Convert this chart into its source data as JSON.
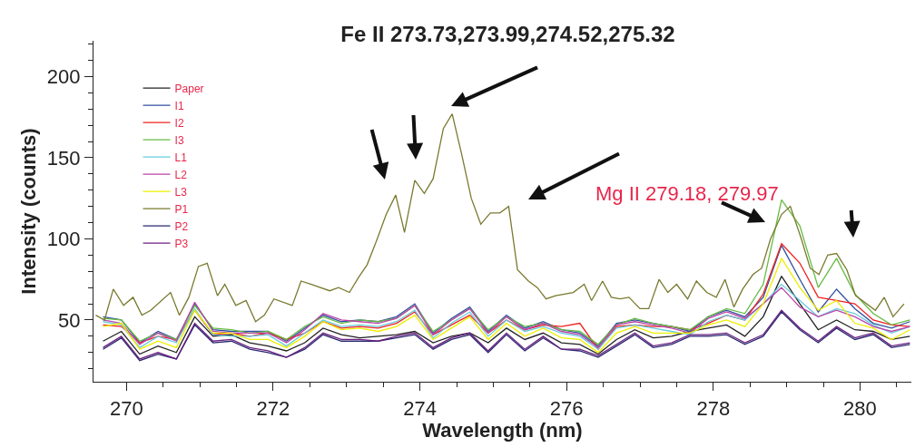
{
  "chart_data": {
    "type": "line",
    "title": "Fe II 273.73,273.99,274.52,275.32",
    "xlabel": "Wavelength (nm)",
    "ylabel": "Intensity (counts)",
    "annotations": [
      "Mg II 279.18, 279.97"
    ],
    "xlim": [
      269.55,
      280.7
    ],
    "xticks": [
      270,
      272,
      274,
      276,
      278,
      280,
      {
        "value": 270.5,
        "label": null
      },
      {
        "value": 271,
        "label": null
      },
      {
        "value": 271.5,
        "label": null
      },
      {
        "value": 272.5,
        "label": null
      },
      {
        "value": 273,
        "label": null
      },
      {
        "value": 273.5,
        "label": null
      },
      {
        "value": 274.5,
        "label": null
      },
      {
        "value": 275,
        "label": null
      },
      {
        "value": 275.5,
        "label": null
      },
      {
        "value": 276.5,
        "label": null
      },
      {
        "value": 277,
        "label": null
      },
      {
        "value": 277.5,
        "label": null
      },
      {
        "value": 278.5,
        "label": null
      },
      {
        "value": 279,
        "label": null
      },
      {
        "value": 279.5,
        "label": null
      },
      {
        "value": 280.5,
        "label": null
      }
    ],
    "ylim": [
      12,
      222
    ],
    "yticks": [
      50,
      100,
      150,
      200,
      {
        "value": 20,
        "label": null
      },
      {
        "value": 30,
        "label": null
      },
      {
        "value": 40,
        "label": null
      },
      {
        "value": 60,
        "label": null
      },
      {
        "value": 70,
        "label": null
      },
      {
        "value": 80,
        "label": null
      },
      {
        "value": 90,
        "label": null
      },
      {
        "value": 110,
        "label": null
      },
      {
        "value": 120,
        "label": null
      },
      {
        "value": 130,
        "label": null
      },
      {
        "value": 140,
        "label": null
      },
      {
        "value": 160,
        "label": null
      },
      {
        "value": 170,
        "label": null
      },
      {
        "value": 180,
        "label": null
      },
      {
        "value": 190,
        "label": null
      },
      {
        "value": 210,
        "label": null
      },
      {
        "value": 220,
        "label": null
      }
    ],
    "legend": "top left",
    "x": [
      269.68,
      269.93,
      270.18,
      270.43,
      270.68,
      270.93,
      271.18,
      271.43,
      271.68,
      271.93,
      272.18,
      272.43,
      272.68,
      272.93,
      273.18,
      273.43,
      273.68,
      273.93,
      274.18,
      274.43,
      274.68,
      274.93,
      275.18,
      275.43,
      275.68,
      275.93,
      276.18,
      276.43,
      276.68,
      276.93,
      277.18,
      277.43,
      277.68,
      277.93,
      278.18,
      278.43,
      278.68,
      278.93,
      279.18,
      279.43,
      279.68,
      279.93,
      280.18,
      280.43,
      280.68
    ],
    "series": [
      {
        "name": "Paper",
        "color": "#222222",
        "values": [
          37,
          43,
          29,
          34,
          30,
          52,
          40,
          41,
          36,
          34,
          31,
          36,
          45,
          41,
          39,
          40,
          41,
          43,
          36,
          40,
          42,
          36,
          45,
          38,
          42,
          36,
          35,
          29,
          38,
          44,
          39,
          40,
          43,
          45,
          47,
          40,
          52,
          77,
          60,
          44,
          50,
          44,
          43,
          38,
          40
        ]
      },
      {
        "name": "I1",
        "color": "#3050a0",
        "values": [
          52,
          50,
          36,
          43,
          38,
          60,
          44,
          43,
          43,
          43,
          37,
          45,
          53,
          49,
          50,
          49,
          52,
          60,
          42,
          51,
          58,
          43,
          53,
          45,
          49,
          44,
          42,
          34,
          48,
          50,
          48,
          46,
          43,
          52,
          56,
          52,
          64,
          96,
          75,
          55,
          69,
          57,
          48,
          45,
          49
        ]
      },
      {
        "name": "I2",
        "color": "#ee2020",
        "values": [
          47,
          46,
          36,
          40,
          38,
          56,
          41,
          42,
          40,
          42,
          38,
          42,
          49,
          45,
          46,
          45,
          48,
          55,
          41,
          47,
          53,
          42,
          50,
          44,
          47,
          46,
          48,
          32,
          46,
          47,
          46,
          46,
          44,
          48,
          53,
          50,
          66,
          97,
          85,
          64,
          62,
          60,
          50,
          47,
          46
        ]
      },
      {
        "name": "I3",
        "color": "#66bb44",
        "values": [
          51,
          50,
          37,
          42,
          38,
          59,
          45,
          44,
          42,
          43,
          38,
          46,
          52,
          48,
          50,
          49,
          51,
          59,
          43,
          50,
          57,
          44,
          52,
          46,
          48,
          44,
          43,
          35,
          47,
          51,
          48,
          46,
          44,
          52,
          57,
          54,
          72,
          124,
          108,
          70,
          88,
          66,
          54,
          47,
          50
        ]
      },
      {
        "name": "L1",
        "color": "#66ccdd",
        "values": [
          49,
          47,
          33,
          40,
          36,
          57,
          41,
          40,
          40,
          41,
          34,
          42,
          50,
          46,
          47,
          46,
          49,
          56,
          39,
          48,
          55,
          40,
          50,
          43,
          46,
          42,
          40,
          32,
          45,
          47,
          45,
          43,
          41,
          49,
          53,
          50,
          60,
          72,
          62,
          52,
          57,
          54,
          47,
          42,
          46
        ]
      },
      {
        "name": "L2",
        "color": "#bb44aa",
        "values": [
          50,
          48,
          35,
          42,
          37,
          61,
          43,
          42,
          42,
          42,
          36,
          44,
          54,
          50,
          49,
          48,
          51,
          59,
          41,
          50,
          57,
          42,
          52,
          44,
          48,
          43,
          41,
          33,
          47,
          49,
          47,
          45,
          42,
          51,
          55,
          51,
          60,
          70,
          58,
          52,
          56,
          52,
          46,
          43,
          46
        ]
      },
      {
        "name": "L3",
        "color": "#eeee00",
        "values": [
          46,
          48,
          32,
          37,
          33,
          56,
          42,
          42,
          38,
          38,
          33,
          40,
          49,
          44,
          45,
          43,
          46,
          53,
          38,
          45,
          52,
          38,
          48,
          40,
          45,
          39,
          38,
          30,
          42,
          46,
          42,
          42,
          42,
          47,
          50,
          46,
          60,
          88,
          70,
          56,
          62,
          48,
          45,
          38,
          44
        ]
      },
      {
        "name": "P1",
        "color": "#7a7a30",
        "x": [
          269.58,
          269.7,
          269.82,
          269.96,
          270.09,
          270.21,
          270.33,
          270.6,
          270.72,
          270.85,
          270.98,
          271.1,
          271.24,
          271.34,
          271.49,
          271.63,
          271.76,
          271.88,
          272.01,
          272.26,
          272.38,
          272.52,
          272.77,
          272.89,
          273.04,
          273.16,
          273.28,
          273.41,
          273.54,
          273.67,
          273.79,
          273.93,
          274.06,
          274.18,
          274.32,
          274.44,
          274.57,
          274.7,
          274.83,
          274.96,
          275.09,
          275.21,
          275.33,
          275.48,
          275.6,
          275.72,
          275.85,
          276.09,
          276.24,
          276.34,
          276.49,
          276.61,
          276.73,
          276.85,
          277.0,
          277.12,
          277.26,
          277.38,
          277.5,
          277.65,
          277.77,
          277.91,
          278.04,
          278.16,
          278.28,
          278.4,
          278.54,
          278.66,
          278.78,
          278.93,
          279.05,
          279.2,
          279.32,
          279.44,
          279.56,
          279.68,
          279.82,
          279.94,
          280.21,
          280.33,
          280.45,
          280.6
        ],
        "values": [
          53,
          50,
          69,
          59,
          64,
          53,
          56,
          67,
          53,
          64,
          83,
          85,
          65,
          72,
          59,
          62,
          49,
          53,
          63,
          59,
          74,
          72,
          68,
          70,
          67,
          76,
          84,
          99,
          115,
          127,
          104,
          136,
          128,
          137,
          168,
          177,
          152,
          125,
          109,
          116,
          116,
          120,
          81,
          74,
          70,
          63,
          65,
          67,
          72,
          62,
          74,
          64,
          63,
          64,
          57,
          57,
          75,
          67,
          72,
          63,
          74,
          67,
          64,
          75,
          58,
          69,
          78,
          82,
          100,
          115,
          120,
          100,
          82,
          78,
          90,
          91,
          81,
          65,
          56,
          64,
          52,
          60
        ]
      },
      {
        "name": "P2",
        "color": "#282870",
        "values": [
          32,
          39,
          25,
          29,
          26,
          47,
          36,
          37,
          32,
          30,
          27,
          32,
          41,
          37,
          37,
          37,
          39,
          41,
          32,
          38,
          41,
          30,
          41,
          31,
          39,
          32,
          31,
          27,
          34,
          41,
          33,
          35,
          40,
          40,
          41,
          35,
          40,
          55,
          44,
          36,
          45,
          38,
          41,
          33,
          35
        ]
      },
      {
        "name": "P3",
        "color": "#6a2080",
        "values": [
          33,
          40,
          26,
          30,
          26,
          48,
          37,
          38,
          33,
          31,
          27,
          33,
          42,
          38,
          38,
          37,
          40,
          42,
          33,
          39,
          42,
          31,
          42,
          32,
          40,
          32,
          32,
          28,
          35,
          42,
          34,
          36,
          41,
          41,
          42,
          36,
          41,
          56,
          45,
          37,
          46,
          39,
          42,
          34,
          36
        ]
      }
    ]
  }
}
